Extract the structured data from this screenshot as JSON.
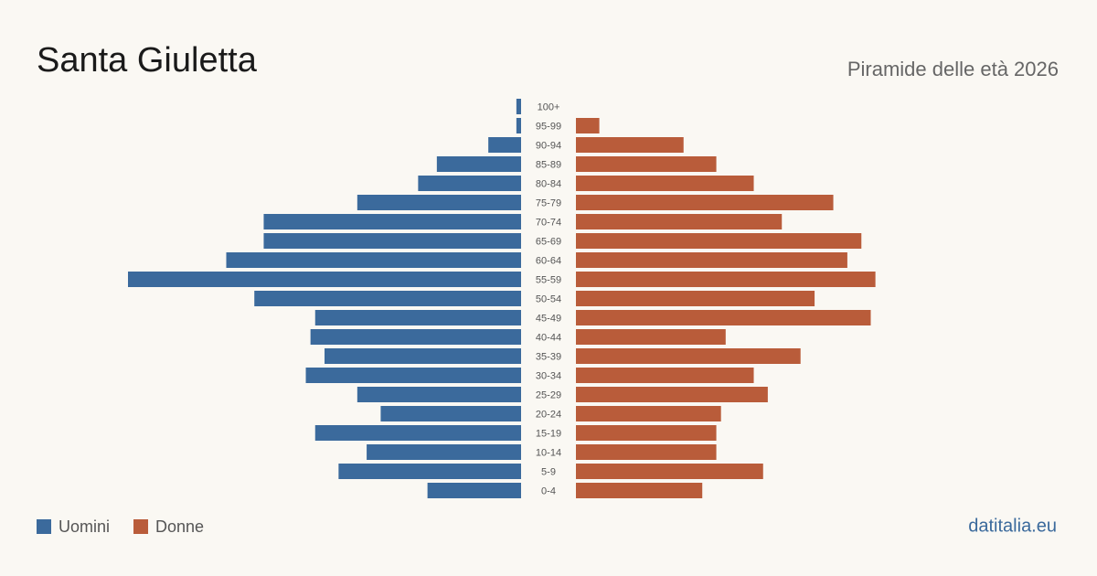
{
  "chart_data": {
    "type": "pyramid",
    "title": "Santa Giuletta",
    "subtitle": "Piramide delle età 2026",
    "source": "datitalia.eu",
    "categories": [
      "100+",
      "95-99",
      "90-94",
      "85-89",
      "80-84",
      "75-79",
      "70-74",
      "65-69",
      "60-64",
      "55-59",
      "50-54",
      "45-49",
      "40-44",
      "35-39",
      "30-34",
      "25-29",
      "20-24",
      "15-19",
      "10-14",
      "5-9",
      "0-4"
    ],
    "series": [
      {
        "name": "Uomini",
        "color": "#3b6a9c",
        "values": [
          1,
          1,
          7,
          18,
          22,
          35,
          55,
          55,
          63,
          84,
          57,
          44,
          45,
          42,
          46,
          35,
          30,
          44,
          33,
          39,
          20
        ]
      },
      {
        "name": "Donne",
        "color": "#b95c3a",
        "values": [
          0,
          5,
          23,
          30,
          38,
          55,
          44,
          61,
          58,
          64,
          51,
          63,
          32,
          48,
          38,
          41,
          31,
          30,
          30,
          40,
          27
        ]
      }
    ]
  }
}
